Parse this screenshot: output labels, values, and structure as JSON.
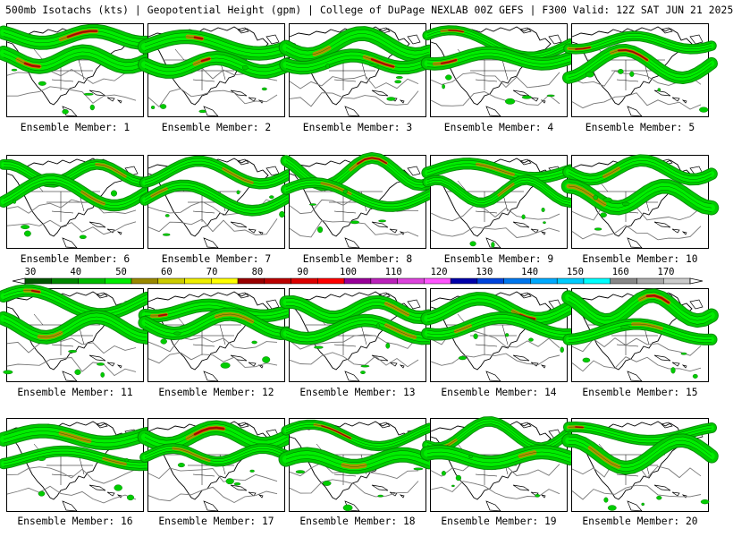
{
  "header": {
    "title": "500mb Isotachs (kts) | Geopotential Height (gpm) | College of DuPage NEXLAB   00Z GEFS | F300 Valid: 12Z SAT JUN 21 2025"
  },
  "colorbar": {
    "tick_labels": [
      "30",
      "40",
      "50",
      "60",
      "70",
      "80",
      "90",
      "100",
      "110",
      "120",
      "130",
      "140",
      "150",
      "160",
      "170"
    ],
    "colors": [
      "#005500",
      "#008800",
      "#00bb00",
      "#00ee00",
      "#998800",
      "#cccc00",
      "#eeee00",
      "#ffff00",
      "#990000",
      "#bb0000",
      "#dd0000",
      "#ff0000",
      "#990099",
      "#bb22bb",
      "#dd44dd",
      "#ff55ff",
      "#0000aa",
      "#0044dd",
      "#0077ee",
      "#00aaff",
      "#00ccff",
      "#00ffff",
      "#888888",
      "#aaaaaa",
      "#cccccc"
    ]
  },
  "panels": [
    {
      "label": "Ensemble Member: 1"
    },
    {
      "label": "Ensemble Member: 2"
    },
    {
      "label": "Ensemble Member: 3"
    },
    {
      "label": "Ensemble Member: 4"
    },
    {
      "label": "Ensemble Member: 5"
    },
    {
      "label": "Ensemble Member: 6"
    },
    {
      "label": "Ensemble Member: 7"
    },
    {
      "label": "Ensemble Member: 8"
    },
    {
      "label": "Ensemble Member: 9"
    },
    {
      "label": "Ensemble Member: 10"
    },
    {
      "label": "Ensemble Member: 11"
    },
    {
      "label": "Ensemble Member: 12"
    },
    {
      "label": "Ensemble Member: 13"
    },
    {
      "label": "Ensemble Member: 14"
    },
    {
      "label": "Ensemble Member: 15"
    },
    {
      "label": "Ensemble Member: 16"
    },
    {
      "label": "Ensemble Member: 17"
    },
    {
      "label": "Ensemble Member: 18"
    },
    {
      "label": "Ensemble Member: 19"
    },
    {
      "label": "Ensemble Member: 20"
    }
  ]
}
